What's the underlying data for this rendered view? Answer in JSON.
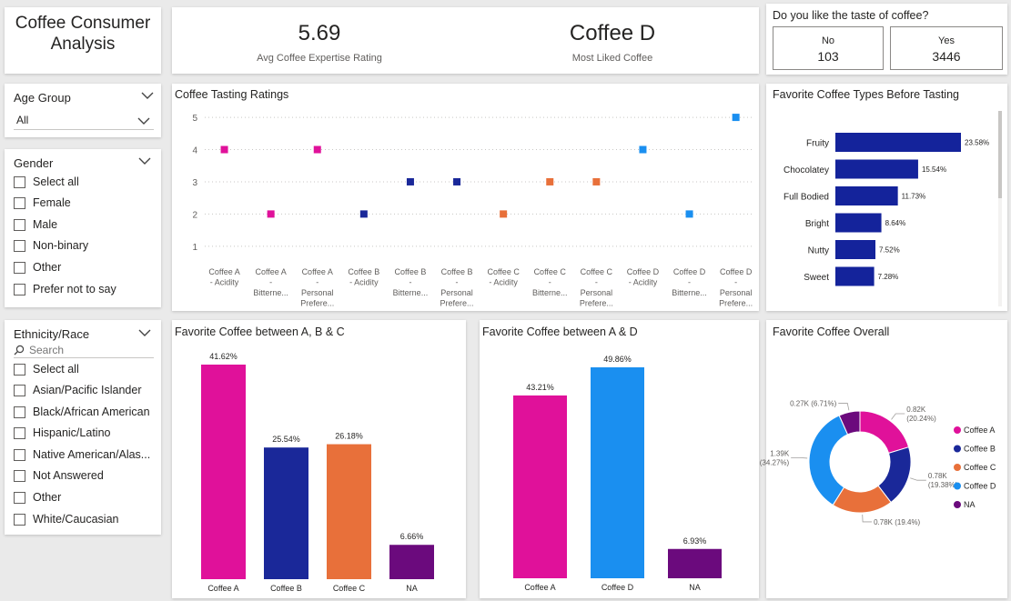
{
  "title": "Coffee Consumer Analysis",
  "kpi": [
    {
      "value": "5.69",
      "label": "Avg Coffee Expertise Rating"
    },
    {
      "value": "Coffee D",
      "label": "Most Liked Coffee"
    }
  ],
  "like_taste": {
    "title": "Do you like the taste of coffee?",
    "options": [
      {
        "label": "No",
        "value": "103"
      },
      {
        "label": "Yes",
        "value": "3446"
      }
    ]
  },
  "age_slicer": {
    "title": "Age Group",
    "selected": "All"
  },
  "gender_slicer": {
    "title": "Gender",
    "items": [
      "Select all",
      "Female",
      "Male",
      "Non-binary",
      "Other",
      "Prefer not to say"
    ]
  },
  "ethnicity_slicer": {
    "title": "Ethnicity/Race",
    "search_placeholder": "Search",
    "items": [
      "Select all",
      "Asian/Pacific Islander",
      "Black/African American",
      "Hispanic/Latino",
      "Native American/Alas...",
      "Not Answered",
      "Other",
      "White/Caucasian"
    ]
  },
  "colors": {
    "coffee_a": "#e0119a",
    "coffee_b": "#1a2899",
    "coffee_c": "#e8703a",
    "coffee_d": "#1a8ff0",
    "na": "#6b0a7d",
    "bar_types": "#14239b"
  },
  "chart_data": [
    {
      "title": "Coffee Tasting Ratings",
      "type": "scatter",
      "yticks": [
        1,
        2,
        3,
        4,
        5
      ],
      "ylim": [
        0.6,
        5.2
      ],
      "categories": [
        [
          "Coffee A",
          "- Acidity"
        ],
        [
          "Coffee A",
          "-",
          "Bitterne..."
        ],
        [
          "Coffee A",
          "-",
          "Personal",
          "Prefere..."
        ],
        [
          "Coffee B",
          "- Acidity"
        ],
        [
          "Coffee B",
          "-",
          "Bitterne..."
        ],
        [
          "Coffee B",
          "-",
          "Personal",
          "Prefere..."
        ],
        [
          "Coffee C",
          "- Acidity"
        ],
        [
          "Coffee C",
          "-",
          "Bitterne..."
        ],
        [
          "Coffee C",
          "-",
          "Personal",
          "Prefere..."
        ],
        [
          "Coffee D",
          "- Acidity"
        ],
        [
          "Coffee D",
          "-",
          "Bitterne..."
        ],
        [
          "Coffee D",
          "-",
          "Personal",
          "Prefere..."
        ]
      ],
      "values": [
        4,
        2,
        4,
        2,
        3,
        3,
        2,
        3,
        3,
        4,
        2,
        5
      ],
      "point_colors": [
        "#e0119a",
        "#e0119a",
        "#e0119a",
        "#1a2899",
        "#1a2899",
        "#1a2899",
        "#e8703a",
        "#e8703a",
        "#e8703a",
        "#1a8ff0",
        "#1a8ff0",
        "#1a8ff0"
      ],
      "grid": true
    },
    {
      "title": "Favorite Coffee Types Before Tasting",
      "type": "bar",
      "orientation": "horizontal",
      "categories": [
        "Fruity",
        "Chocolatey",
        "Full Bodied",
        "Bright",
        "Nutty",
        "Sweet"
      ],
      "values": [
        23.58,
        15.54,
        11.73,
        8.64,
        7.52,
        7.28
      ],
      "labels": [
        "23.58%",
        "15.54%",
        "11.73%",
        "8.64%",
        "7.52%",
        "7.28%"
      ],
      "color": "#14239b"
    },
    {
      "title": "Favorite Coffee between A, B & C",
      "type": "bar",
      "categories": [
        "Coffee A",
        "Coffee B",
        "Coffee C",
        "NA"
      ],
      "values": [
        41.62,
        25.54,
        26.18,
        6.66
      ],
      "labels": [
        "41.62%",
        "25.54%",
        "26.18%",
        "6.66%"
      ],
      "colors": [
        "#e0119a",
        "#1a2899",
        "#e8703a",
        "#6b0a7d"
      ]
    },
    {
      "title": "Favorite Coffee between A & D",
      "type": "bar",
      "categories": [
        "Coffee A",
        "Coffee D",
        "NA"
      ],
      "values": [
        43.21,
        49.86,
        6.93
      ],
      "labels": [
        "43.21%",
        "49.86%",
        "6.93%"
      ],
      "colors": [
        "#e0119a",
        "#1a8ff0",
        "#6b0a7d"
      ]
    },
    {
      "title": "Favorite Coffee Overall",
      "type": "pie",
      "series": [
        {
          "name": "Coffee A",
          "value": 0.82,
          "label": [
            "0.82K",
            "(20.24%)"
          ],
          "color": "#e0119a"
        },
        {
          "name": "Coffee B",
          "value": 0.78,
          "label": [
            "0.78K",
            "(19.38%)"
          ],
          "color": "#1a2899"
        },
        {
          "name": "Coffee C",
          "value": 0.78,
          "label": [
            "0.78K (19.4%)"
          ],
          "color": "#e8703a"
        },
        {
          "name": "Coffee D",
          "value": 1.39,
          "label": [
            "1.39K",
            "(34.27%)"
          ],
          "color": "#1a8ff0"
        },
        {
          "name": "NA",
          "value": 0.27,
          "label": [
            "0.27K (6.71%)"
          ],
          "color": "#6b0a7d"
        }
      ],
      "legend": "right"
    }
  ]
}
